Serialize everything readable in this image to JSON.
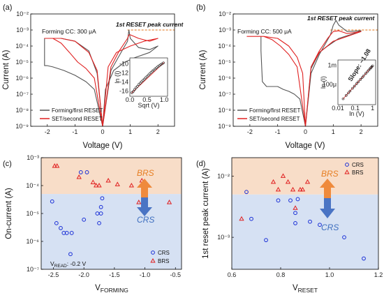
{
  "colors": {
    "brs_band": "#f8ddc8",
    "crs_band": "#d6e1f3",
    "brs_text": "#e67e22",
    "crs_text": "#3f6fbf",
    "red": "#e02020",
    "blue": "#1a2fd6",
    "gray": "#555555",
    "orange_dash": "#e07010"
  },
  "chart_data": [
    {
      "panel": "(a)",
      "type": "line",
      "log_y": true,
      "xlabel": "Voltage (V)",
      "ylabel": "Current (A)",
      "xlim": [
        -2.6,
        2.6
      ],
      "ylim": [
        1e-09,
        0.01
      ],
      "xticks": [
        "-2",
        "-1",
        "0",
        "1",
        "2"
      ],
      "yticks": [
        "10⁻⁹",
        "10⁻⁸",
        "10⁻⁷",
        "10⁻⁶",
        "10⁻⁵",
        "10⁻⁴",
        "10⁻³",
        "10⁻²"
      ],
      "annotation_cc": "Forming CC: 300 μA",
      "annotation_peak": "1st RESET peak current",
      "series": [
        {
          "name": "Forming/first RESET",
          "color": "gray",
          "x": [
            0,
            -0.3,
            -0.6,
            -1.0,
            -1.4,
            -1.8,
            -2.0,
            -2.1,
            -2.1,
            -1.5,
            -1.0,
            -0.5,
            -0.2,
            0,
            0.3,
            0.7,
            0.9,
            0.95,
            1.0,
            1.3,
            1.7,
            2.0,
            1.7,
            1.2,
            0.8,
            0.4,
            0.1,
            0
          ],
          "y": [
            1e-09,
            2e-07,
            6e-07,
            1.5e-06,
            3e-06,
            5e-06,
            6e-06,
            6e-06,
            0.0003,
            0.0003,
            0.0002,
            5e-05,
            2e-06,
            1e-09,
            3e-06,
            5e-05,
            0.0002,
            0.001,
            0.0003,
            8e-05,
            6e-05,
            0.0001,
            4e-05,
            2e-05,
            1e-05,
            3e-06,
            2e-07,
            1e-09
          ]
        },
        {
          "name": "SET/second RESET",
          "color": "red",
          "x": [
            0,
            -0.3,
            -0.6,
            -0.9,
            -1.2,
            -1.5,
            -1.8,
            -2.1,
            -1.5,
            -1.0,
            -0.5,
            -0.2,
            0,
            0.3,
            0.6,
            0.9,
            0.95,
            1.0,
            1.3,
            1.7,
            2.0,
            1.5,
            1.0,
            0.5,
            0.2,
            0
          ],
          "y": [
            1e-09,
            1e-06,
            4e-06,
            1e-05,
            4e-05,
            0.00015,
            0.0003,
            0.0003,
            0.0003,
            0.0002,
            4e-05,
            3e-06,
            1e-09,
            5e-06,
            5e-05,
            0.0003,
            0.0005,
            0.0005,
            0.0003,
            0.0002,
            0.0003,
            0.0002,
            0.0001,
            4e-05,
            5e-06,
            1e-09
          ]
        }
      ],
      "inset": {
        "xlabel": "Sqrt (V)",
        "ylabel": "ln (I)",
        "xlim": [
          0,
          1.1
        ],
        "ylim": [
          -17,
          -8.5
        ],
        "xticks": [
          "0.0",
          "0.5",
          "1.0"
        ],
        "yticks": [
          "-10",
          "-12",
          "-14",
          "-16"
        ],
        "x": [
          0.06,
          0.1,
          0.14,
          0.18,
          0.22,
          0.26,
          0.3,
          0.34,
          0.38,
          0.42,
          0.46,
          0.5,
          0.54,
          0.58,
          0.62,
          0.66,
          0.7,
          0.74,
          0.78,
          0.82,
          0.86,
          0.9,
          0.94,
          0.98
        ],
        "y": [
          -16.2,
          -15.9,
          -15.5,
          -15.1,
          -14.8,
          -14.4,
          -14.1,
          -13.8,
          -13.5,
          -13.2,
          -12.9,
          -12.6,
          -12.3,
          -12.0,
          -11.7,
          -11.4,
          -11.2,
          -10.9,
          -10.7,
          -10.4,
          -10.2,
          -10.0,
          -9.8,
          -9.6
        ]
      }
    },
    {
      "panel": "(b)",
      "type": "line",
      "log_y": true,
      "xlabel": "Voltage (V)",
      "ylabel": "Current (A)",
      "xlim": [
        -2.6,
        2.6
      ],
      "ylim": [
        1e-09,
        0.01
      ],
      "xticks": [
        "-2",
        "-1",
        "0",
        "1",
        "2"
      ],
      "yticks": [
        "10⁻⁹",
        "10⁻⁸",
        "10⁻⁷",
        "10⁻⁶",
        "10⁻⁵",
        "10⁻⁴",
        "10⁻³",
        "10⁻²"
      ],
      "annotation_cc": "Forming CC: 500 μA",
      "annotation_peak": "1st RESET peak current",
      "series": [
        {
          "name": "Forming/first RESET",
          "color": "gray",
          "x": [
            -1.6,
            -1.6,
            -1.55,
            -1.4,
            -1.2,
            -1.0,
            -0.8,
            -0.6,
            -0.4,
            -0.2,
            0,
            0.2,
            0.5,
            0.9,
            1.0,
            1.1,
            1.2,
            1.5,
            2.0,
            1.6,
            1.2,
            0.8,
            0.5,
            0.2,
            0
          ],
          "y": [
            0.0004,
            5e-05,
            6e-07,
            3e-07,
            3e-07,
            3e-07,
            2e-07,
            1.5e-07,
            1e-07,
            5e-08,
            1e-09,
            2e-06,
            3e-05,
            0.0005,
            0.002,
            0.004,
            0.002,
            0.0008,
            0.0009,
            0.0005,
            0.0003,
            0.0001,
            4e-05,
            4e-06,
            1e-09
          ]
        },
        {
          "name": "SET/second RESET",
          "color": "red",
          "x": [
            0,
            -0.3,
            -0.6,
            -0.9,
            -1.2,
            -1.5,
            -1.8,
            -2.1,
            -1.5,
            -1.0,
            -0.6,
            -0.3,
            -0.1,
            0,
            0.2,
            0.5,
            0.8,
            1.0,
            1.2,
            1.5,
            2.0,
            1.5,
            1.0,
            0.5,
            0.2,
            0
          ],
          "y": [
            1e-09,
            5e-06,
            3e-05,
            0.0001,
            0.00025,
            0.0004,
            0.0004,
            0.0004,
            0.0004,
            0.0003,
            0.0001,
            2e-05,
            2e-06,
            1e-09,
            5e-06,
            5e-05,
            0.0003,
            0.0008,
            0.0009,
            0.0006,
            0.0008,
            0.0004,
            0.0002,
            4e-05,
            5e-06,
            1e-09
          ]
        }
      ],
      "inset": {
        "xlabel": "ln (V)",
        "ylabel": "ln (I)",
        "slope_label": "Slope: ~1.08",
        "xlim": [
          0.01,
          1.5
        ],
        "ylim": [
          1e-05,
          0.002
        ],
        "xticks": [
          "0.01",
          "0.1",
          "1"
        ],
        "yticks": [
          "1m",
          "100μ"
        ],
        "x": [
          0.02,
          0.03,
          0.04,
          0.05,
          0.07,
          0.09,
          0.12,
          0.15,
          0.2,
          0.25,
          0.3,
          0.4,
          0.5,
          0.6,
          0.7,
          0.8,
          0.9,
          1.0
        ],
        "y": [
          2e-05,
          3e-05,
          4e-05,
          5e-05,
          7e-05,
          9e-05,
          0.00012,
          0.00015,
          0.0002,
          0.00025,
          0.0003,
          0.0004,
          0.0005,
          0.0006,
          0.0007,
          0.0008,
          0.0009,
          0.001
        ]
      }
    },
    {
      "panel": "(c)",
      "type": "scatter",
      "log_y": true,
      "xlabel_main": "V",
      "xlabel_sub": "FORMING",
      "ylabel": "On-current (A)",
      "xlim": [
        -2.7,
        -0.4
      ],
      "ylim": [
        1e-07,
        0.001
      ],
      "xticks": [
        "-2.5",
        "-2.0",
        "-1.5",
        "-1.0",
        "-0.5"
      ],
      "yticks": [
        "10⁻⁷",
        "10⁻⁶",
        "10⁻⁵",
        "10⁻⁴",
        "10⁻³"
      ],
      "boundary": 5e-05,
      "band_labels": {
        "top": "BRS",
        "bottom": "CRS"
      },
      "read_label_main": "V",
      "read_label_sub": "READ",
      "read_label_rest": ": -0.2 V",
      "legend": [
        "CRS",
        "BRS"
      ],
      "series": [
        {
          "name": "CRS",
          "marker": "circle",
          "color": "blue",
          "x": [
            -2.52,
            -2.45,
            -2.38,
            -2.33,
            -2.28,
            -2.22,
            -2.2,
            -2.05,
            -2.0,
            -1.95,
            -1.78,
            -1.75,
            -1.72,
            -1.72,
            -1.7
          ],
          "y": [
            2.7e-05,
            4.5e-06,
            3e-06,
            2e-06,
            2e-06,
            3.5e-07,
            2e-06,
            0.0003,
            6e-06,
            0.0003,
            1e-05,
            4.5e-06,
            1e-05,
            1.7e-05,
            3.5e-05
          ]
        },
        {
          "name": "BRS",
          "marker": "triangle",
          "color": "red",
          "x": [
            -2.48,
            -2.44,
            -2.08,
            -1.85,
            -1.8,
            -1.75,
            -1.6,
            -1.45,
            -1.22,
            -1.1,
            -1.05,
            -0.6
          ],
          "y": [
            0.0005,
            0.0005,
            0.0002,
            0.00013,
            0.0001,
            0.0001,
            0.00015,
            0.00011,
            0.0001,
            2.5e-05,
            0.00015,
            2.5e-05
          ]
        }
      ]
    },
    {
      "panel": "(d)",
      "type": "scatter",
      "log_y": true,
      "xlabel_main": "V",
      "xlabel_sub": "RESET",
      "ylabel": "1st reset peak current (A)",
      "xlim": [
        0.6,
        1.2
      ],
      "ylim": [
        0.0003,
        0.02
      ],
      "xticks": [
        "0.6",
        "0.8",
        "1.0",
        "1.2"
      ],
      "yticks": [
        "10⁻³",
        "10⁻²"
      ],
      "boundary": 0.005,
      "band_labels": {
        "top": "BRS",
        "bottom": "CRS"
      },
      "legend": [
        "CRS",
        "BRS"
      ],
      "series": [
        {
          "name": "CRS",
          "marker": "circle",
          "color": "blue",
          "x": [
            0.66,
            0.68,
            0.74,
            0.79,
            0.84,
            0.86,
            0.86,
            0.87,
            0.92,
            0.96,
            1.06,
            1.14
          ],
          "y": [
            0.0055,
            0.002,
            0.0009,
            0.004,
            0.004,
            0.0025,
            0.0017,
            0.0042,
            0.0018,
            0.0016,
            0.001,
            0.00045
          ]
        },
        {
          "name": "BRS",
          "marker": "triangle",
          "color": "red",
          "x": [
            0.64,
            0.77,
            0.79,
            0.81,
            0.83,
            0.85,
            0.86,
            0.88,
            0.89,
            0.91
          ],
          "y": [
            0.002,
            0.008,
            0.006,
            0.01,
            0.008,
            0.006,
            0.003,
            0.006,
            0.006,
            0.008
          ]
        }
      ]
    }
  ]
}
